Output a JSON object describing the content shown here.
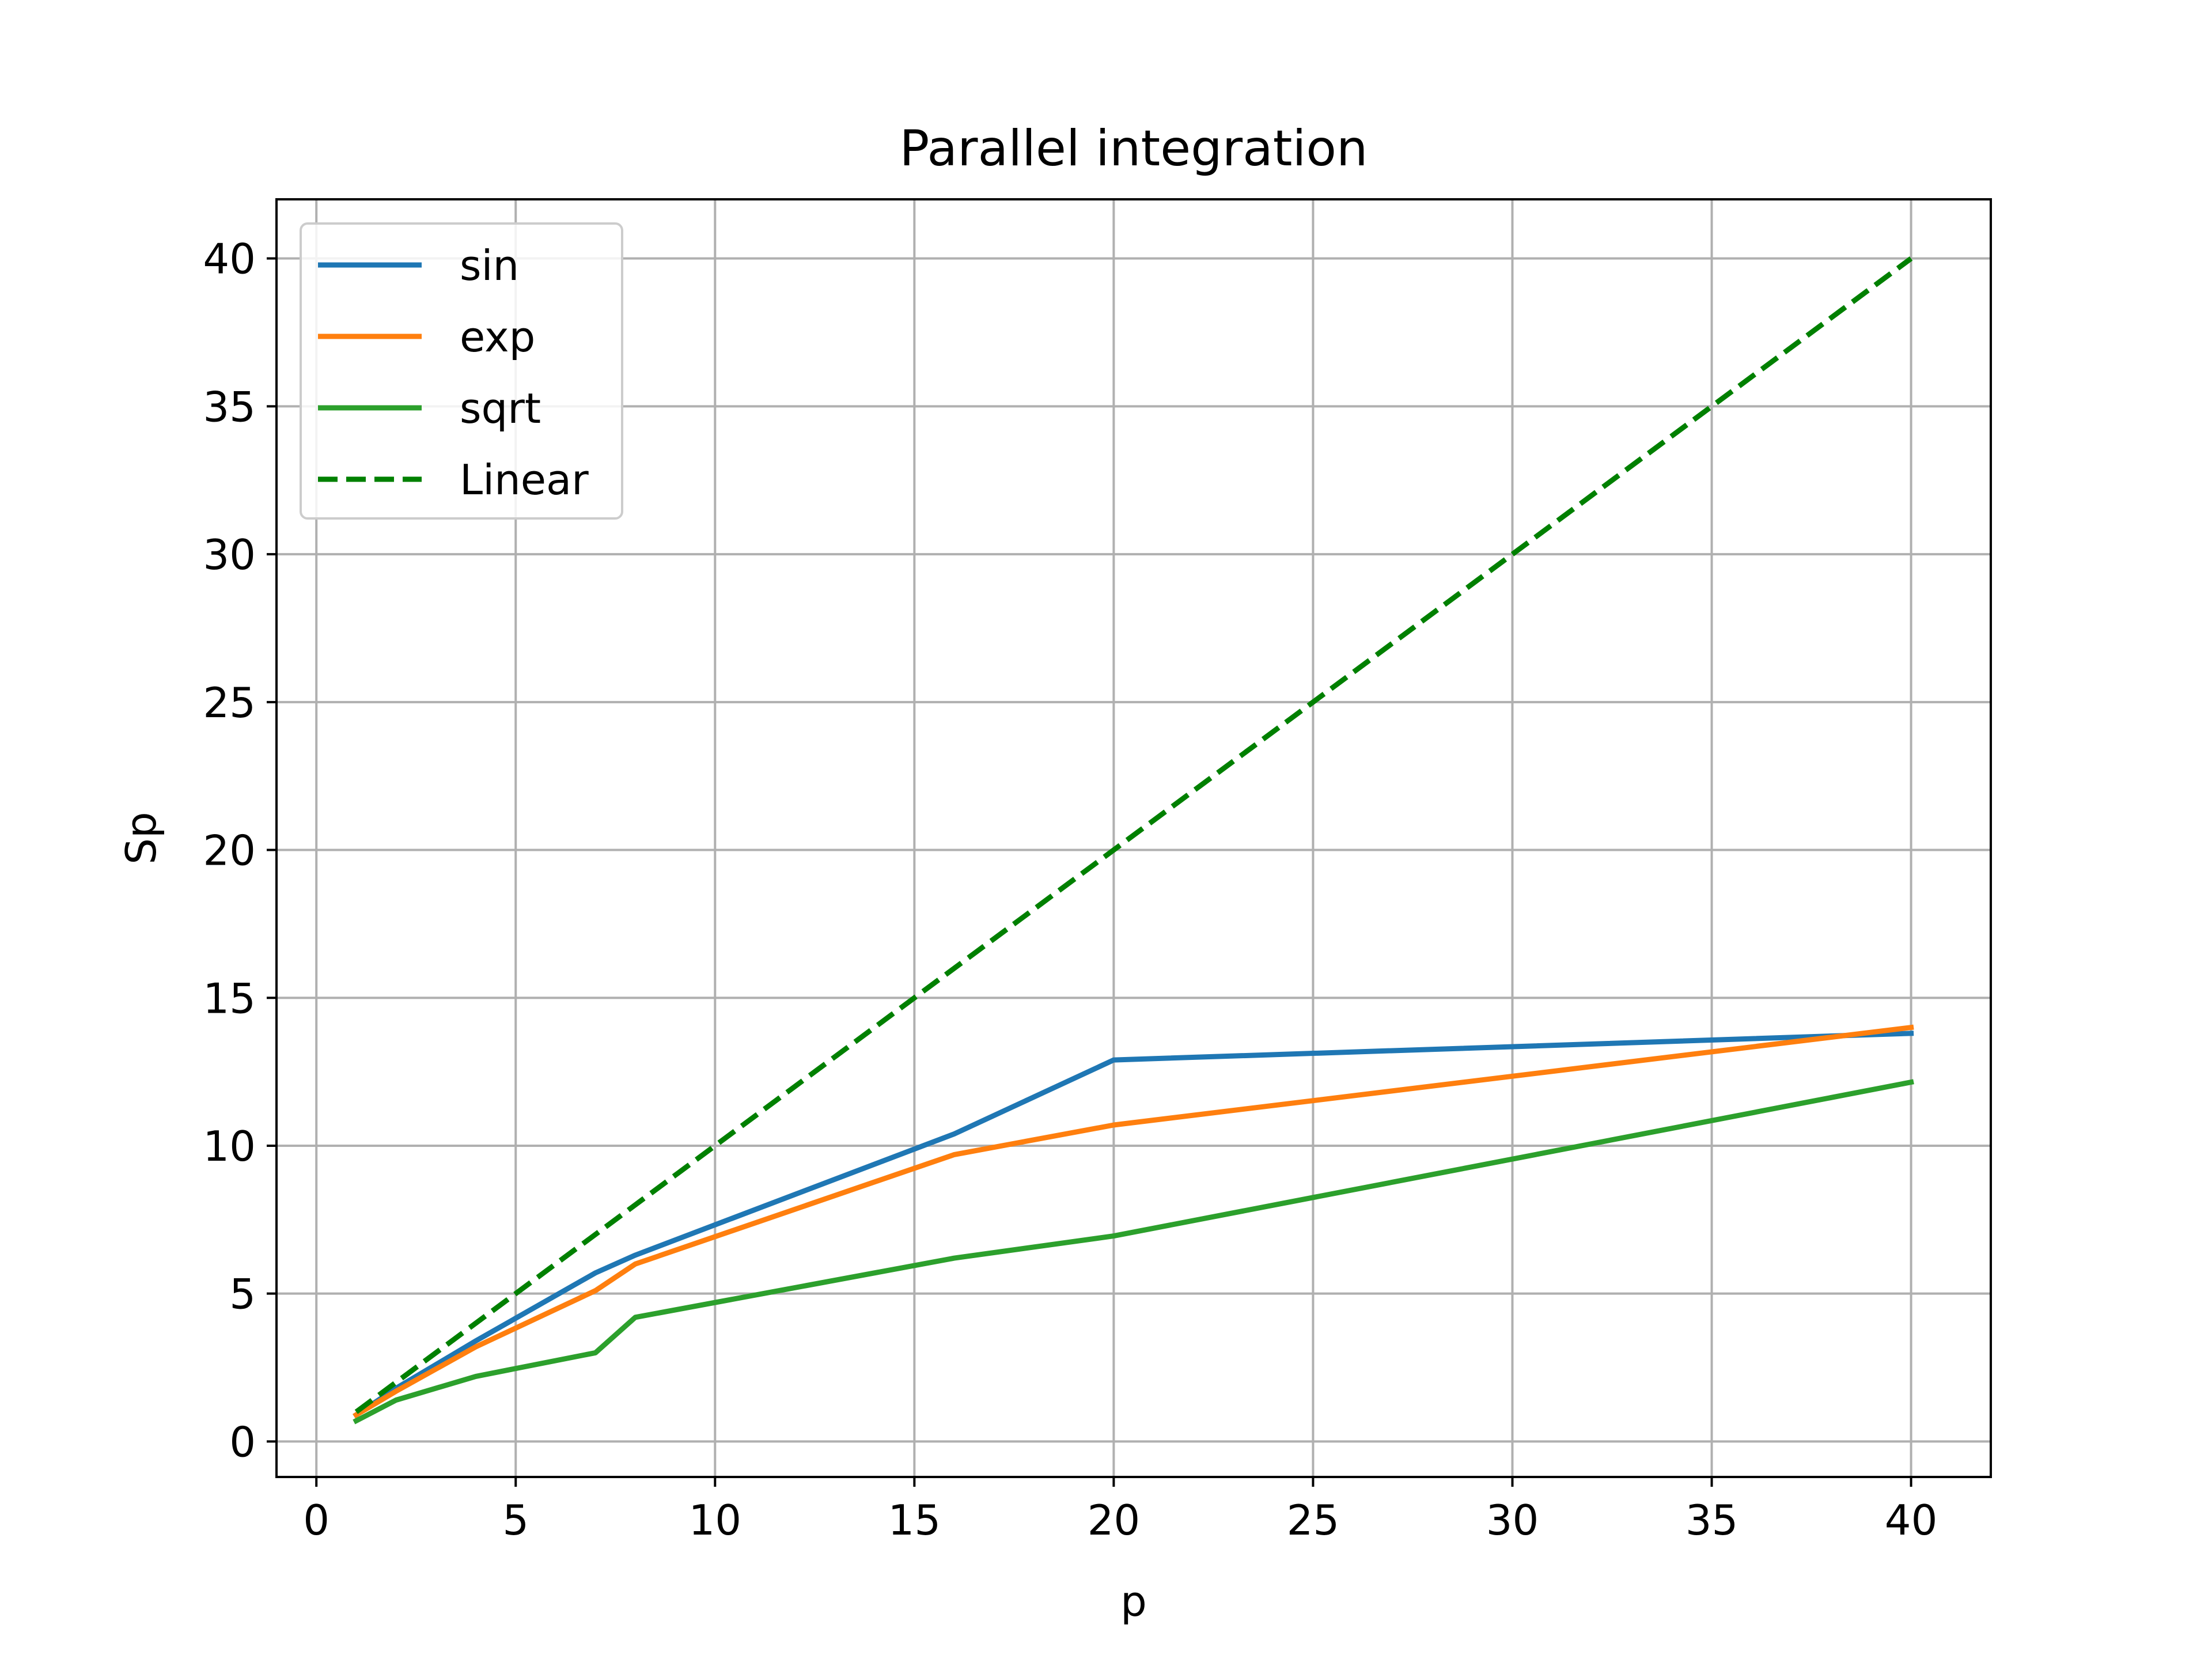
{
  "chart_data": {
    "type": "line",
    "title": "Parallel integration",
    "xlabel": "p",
    "ylabel": "Sp",
    "xlim": [
      -1,
      42
    ],
    "ylim": [
      -1.2,
      42
    ],
    "xticks": [
      0,
      5,
      10,
      15,
      20,
      25,
      30,
      35,
      40
    ],
    "yticks": [
      0,
      5,
      10,
      15,
      20,
      25,
      30,
      35,
      40
    ],
    "grid": true,
    "legend_position": "upper-left",
    "series": [
      {
        "name": "sin",
        "color": "#1f77b4",
        "style": "solid",
        "x": [
          1,
          2,
          4,
          7,
          8,
          16,
          20,
          40
        ],
        "y": [
          0.9,
          1.8,
          3.4,
          5.7,
          6.3,
          10.4,
          12.9,
          13.8
        ]
      },
      {
        "name": "exp",
        "color": "#ff7f0e",
        "style": "solid",
        "x": [
          1,
          2,
          4,
          7,
          8,
          16,
          20,
          40
        ],
        "y": [
          0.9,
          1.7,
          3.2,
          5.1,
          6.0,
          9.7,
          10.7,
          14.0
        ]
      },
      {
        "name": "sqrt",
        "color": "#2ca02c",
        "style": "solid",
        "x": [
          1,
          2,
          4,
          7,
          8,
          16,
          20,
          40
        ],
        "y": [
          0.7,
          1.4,
          2.2,
          3.0,
          4.2,
          6.2,
          6.95,
          12.15
        ]
      },
      {
        "name": "Linear",
        "color": "#008000",
        "style": "dashed",
        "x": [
          1,
          40
        ],
        "y": [
          1,
          40
        ]
      }
    ]
  }
}
